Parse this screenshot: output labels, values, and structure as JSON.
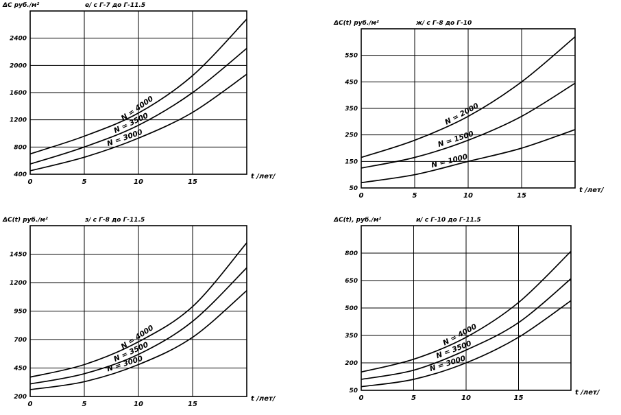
{
  "chart_data": [
    {
      "type": "line",
      "title": "е/ с Г-7 до Г-11.5",
      "ylabel": "ΔС руб./м²",
      "xlabel": "t /лет/",
      "xlim": [
        0,
        20
      ],
      "ylim": [
        400,
        2800
      ],
      "xticks": [
        "0",
        "5",
        "10",
        "15"
      ],
      "yticks": [
        "400",
        "800",
        "1200",
        "1600",
        "2000",
        "2400"
      ],
      "grid": true,
      "series": [
        {
          "name": "N = 4000",
          "x": [
            0,
            5,
            10,
            15,
            20
          ],
          "values": [
            700,
            960,
            1300,
            1850,
            2680
          ]
        },
        {
          "name": "N = 3500",
          "x": [
            0,
            5,
            10,
            15,
            20
          ],
          "values": [
            550,
            800,
            1120,
            1600,
            2250
          ]
        },
        {
          "name": "N = 3000",
          "x": [
            0,
            5,
            10,
            15,
            20
          ],
          "values": [
            450,
            650,
            930,
            1310,
            1870
          ]
        }
      ]
    },
    {
      "type": "line",
      "title": "ж/ с Г-8 до Г-10",
      "ylabel": "ΔC(t) руб./м²",
      "xlabel": "t /лет/",
      "xlim": [
        0,
        20
      ],
      "ylim": [
        50,
        650
      ],
      "xticks": [
        "0",
        "5",
        "10",
        "15"
      ],
      "yticks": [
        "50",
        "150",
        "250",
        "350",
        "450",
        "550"
      ],
      "grid": true,
      "series": [
        {
          "name": "N = 2000",
          "x": [
            0,
            5,
            10,
            15,
            20
          ],
          "values": [
            165,
            230,
            320,
            450,
            620
          ]
        },
        {
          "name": "N = 1500",
          "x": [
            0,
            5,
            10,
            15,
            20
          ],
          "values": [
            125,
            165,
            230,
            320,
            445
          ]
        },
        {
          "name": "N = 1000",
          "x": [
            0,
            5,
            10,
            15,
            20
          ],
          "values": [
            70,
            100,
            150,
            200,
            270
          ]
        }
      ]
    },
    {
      "type": "line",
      "title": "з/ с Г-8 до Г-11.5",
      "ylabel": "ΔC(t) руб./м²",
      "xlabel": "t /лет/",
      "xlim": [
        0,
        20
      ],
      "ylim": [
        200,
        1700
      ],
      "xticks": [
        "0",
        "5",
        "10",
        "15"
      ],
      "yticks": [
        "200",
        "450",
        "700",
        "950",
        "1200",
        "1450"
      ],
      "grid": true,
      "series": [
        {
          "name": "N = 4000",
          "x": [
            0,
            5,
            10,
            15,
            20
          ],
          "values": [
            370,
            480,
            680,
            990,
            1550
          ]
        },
        {
          "name": "N = 3500",
          "x": [
            0,
            5,
            10,
            15,
            20
          ],
          "values": [
            310,
            400,
            570,
            860,
            1330
          ]
        },
        {
          "name": "N = 3000",
          "x": [
            0,
            5,
            10,
            15,
            20
          ],
          "values": [
            260,
            330,
            480,
            720,
            1130
          ]
        }
      ]
    },
    {
      "type": "line",
      "title": "и/ с Г-10 до Г-11.5",
      "ylabel": "ΔC(t), руб./м²",
      "xlabel": "t /лет/",
      "xlim": [
        0,
        20
      ],
      "ylim": [
        50,
        950
      ],
      "xticks": [
        "0",
        "5",
        "10",
        "15"
      ],
      "yticks": [
        "50",
        "200",
        "350",
        "500",
        "650",
        "800"
      ],
      "grid": true,
      "series": [
        {
          "name": "N = 4000",
          "x": [
            0,
            5,
            10,
            15,
            20
          ],
          "values": [
            150,
            220,
            340,
            530,
            810
          ]
        },
        {
          "name": "N = 3500",
          "x": [
            0,
            5,
            10,
            15,
            20
          ],
          "values": [
            110,
            160,
            270,
            420,
            660
          ]
        },
        {
          "name": "N = 3000",
          "x": [
            0,
            5,
            10,
            15,
            20
          ],
          "values": [
            70,
            110,
            200,
            340,
            540
          ]
        }
      ]
    }
  ]
}
